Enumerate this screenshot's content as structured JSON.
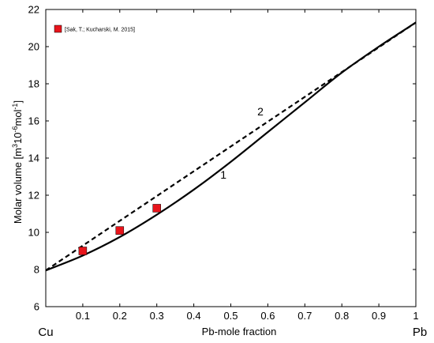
{
  "chart_data": {
    "type": "line",
    "title": "",
    "xlabel": "Pb-mole fraction",
    "ylabel_parts": {
      "main": "Molar volume [m",
      "sup1": "3",
      "mid": "10",
      "sup2": "-6",
      "mid2": "mol",
      "sup3": "-1",
      "end": "]"
    },
    "xlim": [
      0,
      1
    ],
    "ylim": [
      6,
      22
    ],
    "xticks": [
      "0.1",
      "0.2",
      "0.3",
      "0.4",
      "0.5",
      "0.6",
      "0.7",
      "0.8",
      "0.9",
      "1"
    ],
    "xtick_values": [
      0.1,
      0.2,
      0.3,
      0.4,
      0.5,
      0.6,
      0.7,
      0.8,
      0.9,
      1.0
    ],
    "yticks": [
      "6",
      "8",
      "10",
      "12",
      "14",
      "16",
      "18",
      "20",
      "22"
    ],
    "ytick_values": [
      6,
      8,
      10,
      12,
      14,
      16,
      18,
      20,
      22
    ],
    "x_end_labels": {
      "left": "Cu",
      "right": "Pb"
    },
    "grid": false,
    "legend_position": "top-left",
    "series": [
      {
        "name": "1",
        "style": "solid",
        "color": "#000000",
        "x": [
          0,
          0.1,
          0.2,
          0.3,
          0.4,
          0.5,
          0.6,
          0.7,
          0.8,
          0.9,
          1.0
        ],
        "y": [
          7.95,
          8.75,
          9.75,
          10.95,
          12.3,
          13.8,
          15.4,
          17.0,
          18.6,
          20.0,
          21.3
        ]
      },
      {
        "name": "2",
        "style": "dashed",
        "color": "#000000",
        "x": [
          0,
          1.0
        ],
        "y": [
          7.95,
          21.3
        ]
      },
      {
        "name": "[Sak, T.; Kucharski, M. 2015]",
        "style": "marker",
        "color": "#e8141b",
        "x": [
          0.1,
          0.2,
          0.3
        ],
        "y": [
          9.0,
          10.1,
          11.3
        ]
      }
    ],
    "curve_labels": [
      {
        "text": "1",
        "x": 0.48,
        "y": 12.9
      },
      {
        "text": "2",
        "x": 0.58,
        "y": 16.3
      }
    ]
  }
}
